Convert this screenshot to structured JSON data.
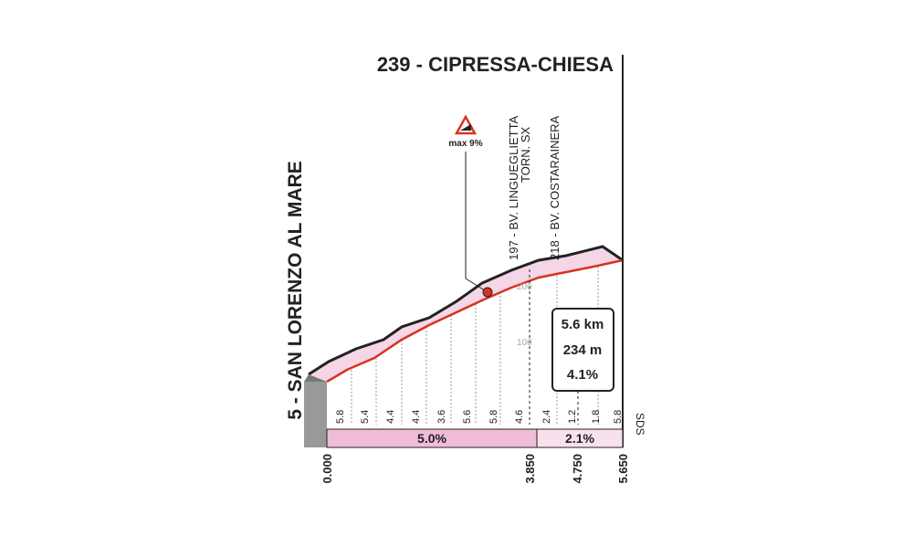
{
  "finish": {
    "label": "239 - CIPRESSA-CHIESA"
  },
  "start": {
    "label": "5 - SAN LORENZO AL MARE"
  },
  "max_gradient": "max 9%",
  "points": [
    {
      "label": "197 - BV. LINGUEGLIETTA",
      "note": "TORN. SX"
    },
    {
      "label": "218 - BV. COSTARAINERA"
    }
  ],
  "altitude_labels": [
    "200",
    "100"
  ],
  "summary": {
    "length": "5.6 km",
    "gain": "234 m",
    "average": "4.1%"
  },
  "km_gradients": [
    "5.8",
    "5.4",
    "4.4",
    "4.4",
    "3.6",
    "5.6",
    "5.8",
    "4.6",
    "2.4",
    "1.2",
    "1.8",
    "5.8"
  ],
  "segments": [
    {
      "gradient": "5.0%"
    },
    {
      "gradient": "2.1%"
    }
  ],
  "distances": [
    "0.000",
    "3.850",
    "4.750",
    "5.650"
  ],
  "road_code": "SDS"
}
